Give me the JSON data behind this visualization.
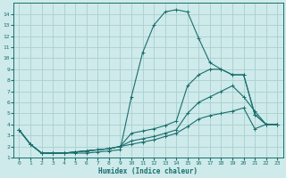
{
  "xlabel": "Humidex (Indice chaleur)",
  "bg_color": "#ceeaea",
  "grid_color": "#aacfcf",
  "line_color": "#1a6e6e",
  "xlim": [
    -0.5,
    23.5
  ],
  "ylim": [
    1,
    15
  ],
  "xticks": [
    0,
    1,
    2,
    3,
    4,
    5,
    6,
    7,
    8,
    9,
    10,
    11,
    12,
    13,
    14,
    15,
    16,
    17,
    18,
    19,
    20,
    21,
    22,
    23
  ],
  "yticks": [
    1,
    2,
    3,
    4,
    5,
    6,
    7,
    8,
    9,
    10,
    11,
    12,
    13,
    14
  ],
  "line1_x": [
    0,
    1,
    2,
    3,
    4,
    5,
    6,
    7,
    8,
    9,
    10,
    11,
    12,
    13,
    14,
    15,
    16,
    17,
    18,
    19,
    20,
    21,
    22,
    23
  ],
  "line1_y": [
    3.5,
    2.2,
    1.4,
    1.4,
    1.4,
    1.4,
    1.4,
    1.5,
    1.6,
    1.7,
    6.5,
    10.5,
    13.0,
    14.2,
    14.4,
    14.2,
    11.8,
    9.6,
    9.0,
    8.5,
    8.5,
    4.9,
    4.0,
    4.0
  ],
  "line2_x": [
    0,
    1,
    2,
    3,
    4,
    5,
    6,
    7,
    8,
    9,
    10,
    11,
    12,
    13,
    14,
    15,
    16,
    17,
    18,
    19,
    20,
    21,
    22,
    23
  ],
  "line2_y": [
    3.5,
    2.2,
    1.4,
    1.4,
    1.4,
    1.5,
    1.6,
    1.7,
    1.8,
    2.0,
    3.2,
    3.4,
    3.6,
    3.9,
    4.3,
    7.5,
    8.5,
    9.0,
    9.0,
    8.5,
    8.5,
    4.9,
    4.0,
    4.0
  ],
  "line3_x": [
    0,
    1,
    2,
    3,
    4,
    5,
    6,
    7,
    8,
    9,
    10,
    11,
    12,
    13,
    14,
    15,
    16,
    17,
    18,
    19,
    20,
    21,
    22,
    23
  ],
  "line3_y": [
    3.5,
    2.2,
    1.4,
    1.4,
    1.4,
    1.5,
    1.6,
    1.7,
    1.8,
    2.0,
    2.5,
    2.7,
    2.9,
    3.2,
    3.5,
    5.0,
    6.0,
    6.5,
    7.0,
    7.5,
    6.5,
    5.2,
    4.0,
    4.0
  ],
  "line4_x": [
    0,
    1,
    2,
    3,
    4,
    5,
    6,
    7,
    8,
    9,
    10,
    11,
    12,
    13,
    14,
    15,
    16,
    17,
    18,
    19,
    20,
    21,
    22,
    23
  ],
  "line4_y": [
    3.5,
    2.2,
    1.4,
    1.4,
    1.4,
    1.5,
    1.6,
    1.7,
    1.8,
    2.0,
    2.2,
    2.4,
    2.6,
    2.9,
    3.2,
    3.8,
    4.5,
    4.8,
    5.0,
    5.2,
    5.5,
    3.6,
    4.0,
    4.0
  ]
}
